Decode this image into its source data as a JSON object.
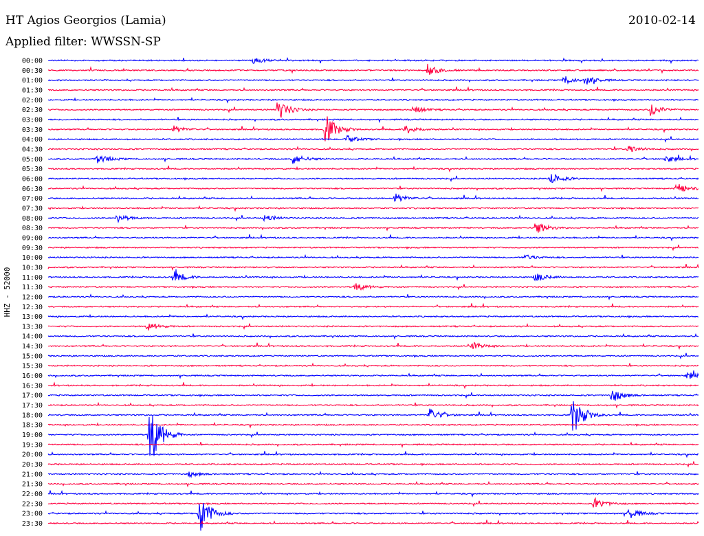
{
  "header": {
    "station": "HT Agios Georgios (Lamia)",
    "filter": "Applied filter: WWSSN-SP",
    "date": "2010-02-14"
  },
  "chart_data": {
    "type": "line",
    "title": "HT Agios Georgios (Lamia)",
    "subtitle": "Applied filter: WWSSN-SP",
    "date": "2010-02-14",
    "ylabel": "HHZ - 52000",
    "xlabel": "",
    "rows": [
      "00:00",
      "00:30",
      "01:00",
      "01:30",
      "02:00",
      "02:30",
      "03:00",
      "03:30",
      "04:00",
      "04:30",
      "05:00",
      "05:30",
      "06:00",
      "06:30",
      "07:00",
      "07:30",
      "08:00",
      "08:30",
      "09:00",
      "09:30",
      "10:00",
      "10:30",
      "11:00",
      "11:30",
      "12:00",
      "12:30",
      "13:00",
      "13:30",
      "14:00",
      "14:30",
      "15:00",
      "15:30",
      "16:00",
      "16:30",
      "17:00",
      "17:30",
      "18:00",
      "18:30",
      "19:00",
      "19:30",
      "20:00",
      "20:30",
      "21:00",
      "21:30",
      "22:00",
      "22:30",
      "23:00",
      "23:30"
    ],
    "series_colors": [
      "#0000ff",
      "#ff0040"
    ],
    "row_minutes": 30,
    "events": [
      {
        "row": 0,
        "minute": 9.5,
        "amp": 5
      },
      {
        "row": 1,
        "minute": 17.5,
        "amp": 9
      },
      {
        "row": 2,
        "minute": 23.8,
        "amp": 6
      },
      {
        "row": 2,
        "minute": 24.8,
        "amp": 7
      },
      {
        "row": 5,
        "minute": 10.6,
        "amp": 16
      },
      {
        "row": 5,
        "minute": 16.8,
        "amp": 6
      },
      {
        "row": 5,
        "minute": 27.8,
        "amp": 10
      },
      {
        "row": 7,
        "minute": 5.8,
        "amp": 5
      },
      {
        "row": 7,
        "minute": 12.8,
        "amp": 22
      },
      {
        "row": 7,
        "minute": 16.5,
        "amp": 7
      },
      {
        "row": 8,
        "minute": 13.8,
        "amp": 5
      },
      {
        "row": 9,
        "minute": 26.8,
        "amp": 6
      },
      {
        "row": 10,
        "minute": 2.3,
        "amp": 7
      },
      {
        "row": 10,
        "minute": 11.3,
        "amp": 8
      },
      {
        "row": 10,
        "minute": 28.5,
        "amp": 5
      },
      {
        "row": 12,
        "minute": 23.2,
        "amp": 9
      },
      {
        "row": 13,
        "minute": 29.0,
        "amp": 8
      },
      {
        "row": 14,
        "minute": 16.0,
        "amp": 7
      },
      {
        "row": 16,
        "minute": 3.2,
        "amp": 6
      },
      {
        "row": 16,
        "minute": 10.0,
        "amp": 5
      },
      {
        "row": 17,
        "minute": 22.5,
        "amp": 10
      },
      {
        "row": 20,
        "minute": 22.0,
        "amp": 4
      },
      {
        "row": 22,
        "minute": 5.8,
        "amp": 9
      },
      {
        "row": 22,
        "minute": 22.5,
        "amp": 7
      },
      {
        "row": 23,
        "minute": 14.2,
        "amp": 6
      },
      {
        "row": 27,
        "minute": 4.6,
        "amp": 6
      },
      {
        "row": 29,
        "minute": 19.6,
        "amp": 5
      },
      {
        "row": 32,
        "minute": 29.5,
        "amp": 5
      },
      {
        "row": 34,
        "minute": 26.0,
        "amp": 11
      },
      {
        "row": 36,
        "minute": 17.6,
        "amp": 10
      },
      {
        "row": 36,
        "minute": 24.2,
        "amp": 30
      },
      {
        "row": 38,
        "minute": 4.7,
        "amp": 48
      },
      {
        "row": 42,
        "minute": 6.5,
        "amp": 4
      },
      {
        "row": 45,
        "minute": 25.2,
        "amp": 8
      },
      {
        "row": 46,
        "minute": 7.0,
        "amp": 30
      },
      {
        "row": 46,
        "minute": 26.8,
        "amp": 8
      }
    ]
  }
}
